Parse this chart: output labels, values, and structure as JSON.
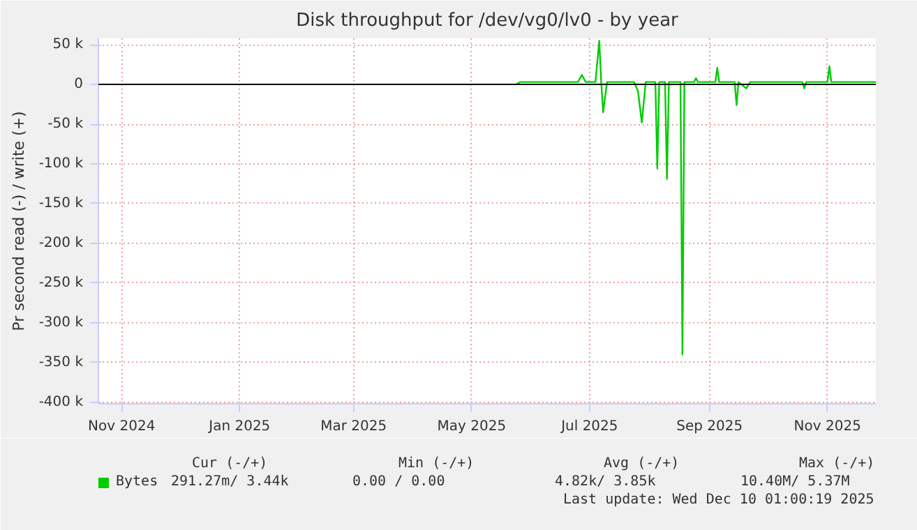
{
  "chart_data": {
    "type": "line",
    "title": "Disk throughput for /dev/vg0/lv0 - by year",
    "ylabel": "Pr second read (-) / write (+)",
    "x": [
      "2025-05-24",
      "2025-05-26",
      "2025-06-10",
      "2025-06-25",
      "2025-06-27",
      "2025-06-29",
      "2025-07-04",
      "2025-07-06",
      "2025-07-07",
      "2025-07-08",
      "2025-07-10",
      "2025-07-24",
      "2025-07-26",
      "2025-07-28",
      "2025-07-30",
      "2025-08-04",
      "2025-08-05",
      "2025-08-06",
      "2025-08-09",
      "2025-08-10",
      "2025-08-11",
      "2025-08-17",
      "2025-08-18",
      "2025-08-19",
      "2025-08-24",
      "2025-08-25",
      "2025-08-26",
      "2025-09-04",
      "2025-09-05",
      "2025-09-06",
      "2025-09-14",
      "2025-09-15",
      "2025-09-16",
      "2025-09-20",
      "2025-09-22",
      "2025-10-19",
      "2025-10-20",
      "2025-10-21",
      "2025-11-01",
      "2025-11-02",
      "2025-11-03",
      "2025-11-26"
    ],
    "series": [
      {
        "name": "Bytes",
        "color": "#00cc00",
        "values": [
          0,
          3000,
          3000,
          3000,
          12000,
          3000,
          3000,
          55000,
          3000,
          -35000,
          3000,
          3000,
          -8000,
          -48000,
          3000,
          3000,
          -106000,
          3000,
          3000,
          -119000,
          3000,
          3000,
          -340000,
          3000,
          3000,
          8000,
          3000,
          3000,
          21000,
          3000,
          3000,
          -26000,
          3000,
          -5000,
          3000,
          3000,
          -5000,
          3000,
          3000,
          23000,
          3000,
          3000
        ]
      }
    ],
    "xlim": [
      "2024-10-20",
      "2025-11-26"
    ],
    "xticks": [
      {
        "value": "2024-11-01",
        "label": "Nov 2024"
      },
      {
        "value": "2025-01-01",
        "label": "Jan 2025"
      },
      {
        "value": "2025-03-01",
        "label": "Mar 2025"
      },
      {
        "value": "2025-05-01",
        "label": "May 2025"
      },
      {
        "value": "2025-07-01",
        "label": "Jul 2025"
      },
      {
        "value": "2025-09-01",
        "label": "Sep 2025"
      },
      {
        "value": "2025-11-01",
        "label": "Nov 2025"
      }
    ],
    "ylim": [
      -402000,
      58000
    ],
    "yticks": [
      {
        "value": 50000,
        "label": "50 k"
      },
      {
        "value": 0,
        "label": "0"
      },
      {
        "value": -50000,
        "label": "-50 k"
      },
      {
        "value": -100000,
        "label": "-100 k"
      },
      {
        "value": -150000,
        "label": "-150 k"
      },
      {
        "value": -200000,
        "label": "-200 k"
      },
      {
        "value": -250000,
        "label": "-250 k"
      },
      {
        "value": -300000,
        "label": "-300 k"
      },
      {
        "value": -350000,
        "label": "-350 k"
      },
      {
        "value": -400000,
        "label": "-400 k"
      }
    ],
    "ref_lines": [
      {
        "axis": "y",
        "value": 0,
        "color": "#000000"
      }
    ],
    "grid": true,
    "legend": "bottom",
    "marker": "none",
    "line_style": "solid",
    "annotations": [
      "Cur (-/+)",
      "Min (-/+)",
      "Avg (-/+)",
      "Max (-/+)",
      "291.27m/      3.44k",
      "0.00 /      0.00",
      "4.82k/      3.85k",
      "10.40M/      5.37M",
      "Last update: Wed Dec 10 01:00:19 2025"
    ]
  }
}
